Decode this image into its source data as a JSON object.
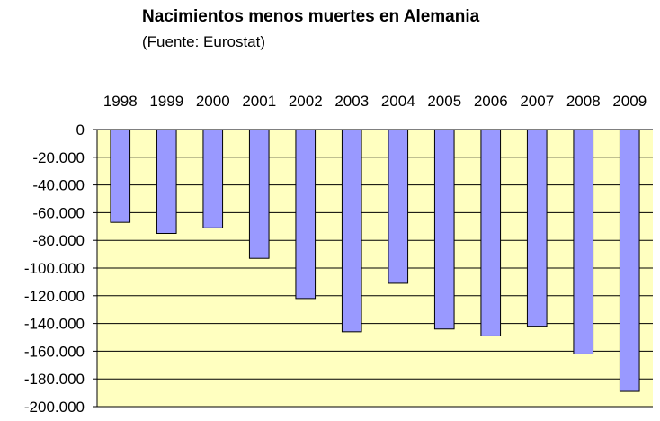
{
  "chart_data": {
    "type": "bar",
    "title": "Nacimientos menos muertes en Alemania",
    "subtitle": "(Fuente: Eurostat)",
    "categories": [
      "1998",
      "1999",
      "2000",
      "2001",
      "2002",
      "2003",
      "2004",
      "2005",
      "2006",
      "2007",
      "2008",
      "2009"
    ],
    "values": [
      -67000,
      -75000,
      -71000,
      -93000,
      -122000,
      -146000,
      -111000,
      -144000,
      -149000,
      -142000,
      -162000,
      -189000
    ],
    "yticks": [
      0,
      -20000,
      -40000,
      -60000,
      -80000,
      -100000,
      -120000,
      -140000,
      -160000,
      -180000,
      -200000
    ],
    "ytick_labels": [
      "0",
      "-20.000",
      "-40.000",
      "-60.000",
      "-80.000",
      "-100.000",
      "-120.000",
      "-140.000",
      "-160.000",
      "-180.000",
      "-200.000"
    ],
    "ylim": [
      -200000,
      0
    ],
    "grid": true,
    "legend": "none",
    "category_axis_position": "top",
    "colors": {
      "bar_fill": "#9999ff",
      "bar_stroke": "#000000",
      "plot_background": "#ffffc0",
      "grid": "#000000"
    }
  }
}
